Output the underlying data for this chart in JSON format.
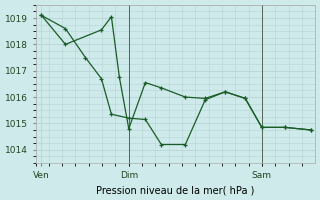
{
  "xlabel": "Pression niveau de la mer( hPa )",
  "background_color": "#ceeaea",
  "grid_color": "#b8d4d4",
  "line_color": "#1a5c28",
  "ylim": [
    1013.5,
    1019.5
  ],
  "yticks": [
    1014,
    1015,
    1016,
    1017,
    1018,
    1019
  ],
  "xlim": [
    0,
    14.0
  ],
  "vlines_x": [
    4.67,
    11.33
  ],
  "xtick_labels": [
    "Ven",
    "Dim",
    "Sam"
  ],
  "xtick_positions": [
    0.3,
    4.67,
    11.33
  ],
  "series1_x": [
    0.3,
    1.5,
    3.3,
    3.8,
    4.2,
    4.67,
    5.5,
    6.3,
    7.5,
    8.5,
    9.5,
    10.5,
    11.33,
    12.5,
    13.8
  ],
  "series1_y": [
    1019.1,
    1018.0,
    1018.55,
    1019.05,
    1016.75,
    1014.8,
    1016.55,
    1016.35,
    1016.0,
    1015.95,
    1016.2,
    1015.95,
    1014.85,
    1014.85,
    1014.75
  ],
  "series2_x": [
    0.3,
    1.5,
    2.5,
    3.3,
    3.8,
    4.67,
    5.5,
    6.3,
    7.5,
    8.5,
    9.5,
    10.5,
    11.33,
    12.5,
    13.8
  ],
  "series2_y": [
    1019.1,
    1018.6,
    1017.5,
    1016.7,
    1015.35,
    1015.2,
    1015.15,
    1014.2,
    1014.2,
    1015.9,
    1016.2,
    1015.95,
    1014.85,
    1014.85,
    1014.75
  ]
}
